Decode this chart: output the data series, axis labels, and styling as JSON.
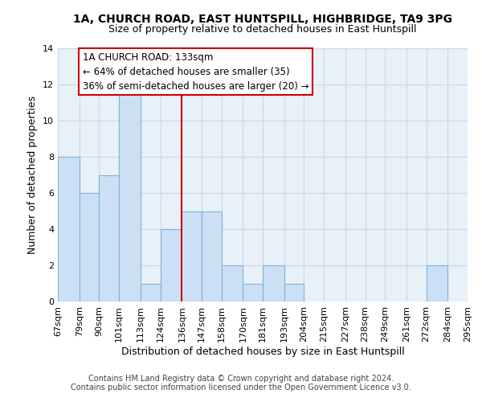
{
  "title_line1": "1A, CHURCH ROAD, EAST HUNTSPILL, HIGHBRIDGE, TA9 3PG",
  "title_line2": "Size of property relative to detached houses in East Huntspill",
  "xlabel": "Distribution of detached houses by size in East Huntspill",
  "ylabel": "Number of detached properties",
  "bar_edges": [
    67,
    79,
    90,
    101,
    113,
    124,
    136,
    147,
    158,
    170,
    181,
    193,
    204,
    215,
    227,
    238,
    249,
    261,
    272,
    284,
    295
  ],
  "bar_heights": [
    8,
    6,
    7,
    12,
    1,
    4,
    5,
    5,
    2,
    1,
    2,
    1,
    0,
    0,
    0,
    0,
    0,
    0,
    2,
    0
  ],
  "bar_color": "#cce0f5",
  "bar_edgecolor": "#7db4d8",
  "reference_line_x": 136,
  "reference_line_color": "#cc0000",
  "ylim": [
    0,
    14
  ],
  "yticks": [
    0,
    2,
    4,
    6,
    8,
    10,
    12,
    14
  ],
  "annotation_title": "1A CHURCH ROAD: 133sqm",
  "annotation_line1": "← 64% of detached houses are smaller (35)",
  "annotation_line2": "36% of semi-detached houses are larger (20) →",
  "footer_line1": "Contains HM Land Registry data © Crown copyright and database right 2024.",
  "footer_line2": "Contains public sector information licensed under the Open Government Licence v3.0.",
  "background_color": "#ffffff",
  "plot_bg_color": "#e8f0f8",
  "grid_color": "#c8d8e8",
  "title_fontsize": 10,
  "subtitle_fontsize": 9,
  "axis_label_fontsize": 9,
  "tick_fontsize": 8,
  "annotation_fontsize": 8.5,
  "footer_fontsize": 7
}
